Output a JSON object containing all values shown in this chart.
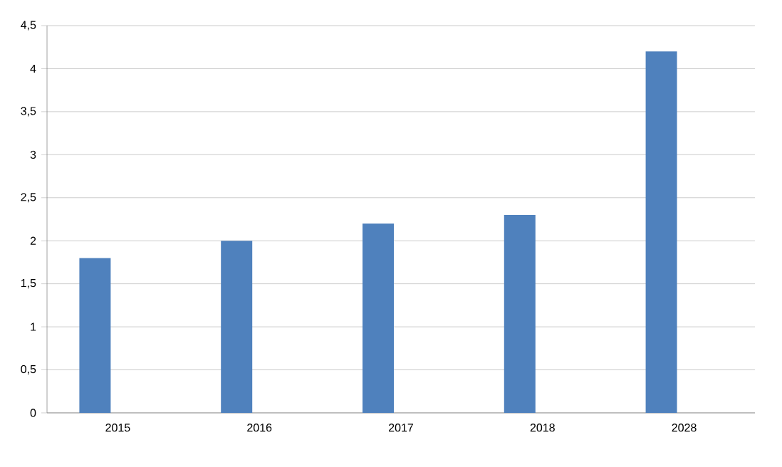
{
  "chart_data": {
    "type": "bar",
    "categories": [
      "2015",
      "2016",
      "2017",
      "2018",
      "2028"
    ],
    "values": [
      1.8,
      2.0,
      2.2,
      2.3,
      4.2
    ],
    "color": "#4f81bd",
    "ylim": [
      0,
      4.5
    ],
    "yticks": [
      0,
      {
        "value": 0.5,
        "label": "0,5"
      },
      1,
      {
        "value": 1.5,
        "label": "1,5"
      },
      2,
      {
        "value": 2.5,
        "label": "2,5"
      },
      3,
      {
        "value": 3.5,
        "label": "3,5"
      },
      4,
      {
        "value": 4.5,
        "label": "4,5"
      }
    ],
    "grid": "y"
  }
}
